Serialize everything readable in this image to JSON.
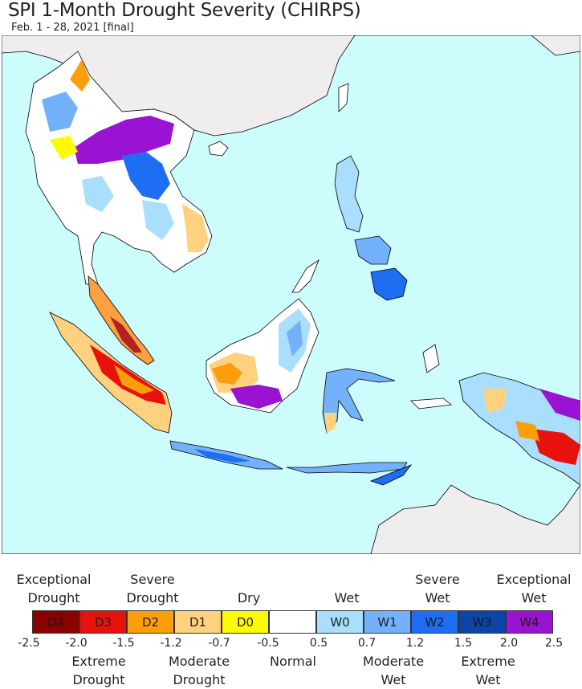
{
  "title": "SPI 1-Month Drought Severity (CHIRPS)",
  "subtitle": "Feb. 1 - 28, 2021 [final]",
  "map": {
    "region": "Southeast Asia",
    "colors": {
      "ocean": "#ccfcfc",
      "other_land": "#efedee",
      "normal": "#ffffff",
      "boundary": "#000000"
    }
  },
  "legend": {
    "top_labels": [
      {
        "line1": "Exceptional",
        "line2": "Drought"
      },
      {
        "line1": "Severe",
        "line2": "Drought"
      },
      {
        "line1": "Dry",
        "line2": ""
      },
      {
        "line1": "Wet",
        "line2": ""
      },
      {
        "line1": "Severe",
        "line2": "Wet"
      },
      {
        "line1": "Exceptional",
        "line2": "Wet"
      }
    ],
    "bottom_labels": [
      {
        "line1": "Extreme",
        "line2": "Drought"
      },
      {
        "line1": "Moderate",
        "line2": "Drought"
      },
      {
        "line1": "Normal",
        "line2": ""
      },
      {
        "line1": "Moderate",
        "line2": "Wet"
      },
      {
        "line1": "Extreme",
        "line2": "Wet"
      }
    ],
    "categories": [
      {
        "label": "D4",
        "color": "#8b0000"
      },
      {
        "label": "D3",
        "color": "#e8120c"
      },
      {
        "label": "D2",
        "color": "#fa9e0c"
      },
      {
        "label": "D1",
        "color": "#fdd17e"
      },
      {
        "label": "D0",
        "color": "#fdfb00"
      },
      {
        "label": "",
        "color": "#ffffff"
      },
      {
        "label": "W0",
        "color": "#a9defc"
      },
      {
        "label": "W1",
        "color": "#73b2fa"
      },
      {
        "label": "W2",
        "color": "#1d6ef2"
      },
      {
        "label": "W3",
        "color": "#0b46a6"
      },
      {
        "label": "W4",
        "color": "#9a13d2"
      }
    ],
    "ticks": [
      "-2.5",
      "-2.0",
      "-1.5",
      "-1.2",
      "-0.7",
      "-0.5",
      "0.5",
      "0.7",
      "1.2",
      "1.5",
      "2.0",
      "2.5"
    ]
  }
}
